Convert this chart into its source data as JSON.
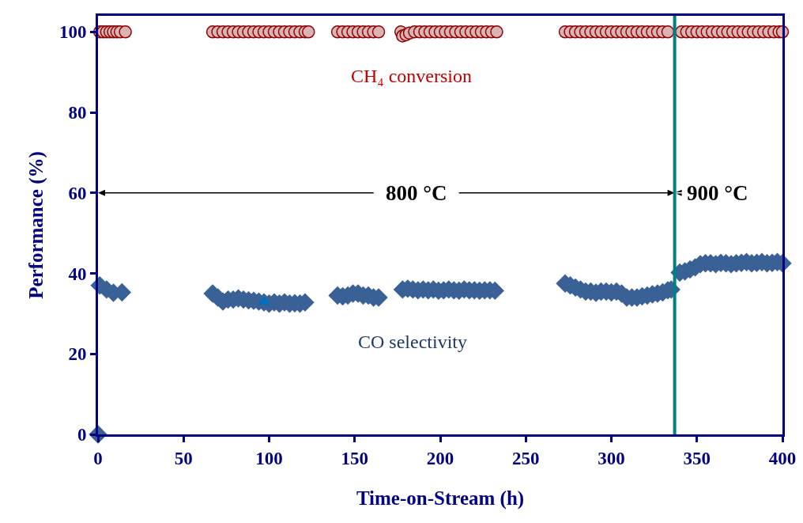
{
  "chart_data": {
    "type": "scatter",
    "xlabel": "Time-on-Stream (h)",
    "ylabel": "Performance (%)",
    "xlim": [
      0,
      400
    ],
    "xticks": [
      0,
      50,
      100,
      150,
      200,
      250,
      300,
      350,
      400
    ],
    "ylim": [
      0,
      104
    ],
    "yticks": [
      0,
      20,
      40,
      60,
      80,
      100
    ],
    "grid": false,
    "legend": false,
    "series": [
      {
        "name": "CH₄ conversion",
        "color": "#8b0000",
        "marker": "circle",
        "x": [
          1,
          3,
          5,
          7,
          9,
          11,
          13,
          16,
          67,
          70,
          73,
          76,
          79,
          82,
          85,
          88,
          91,
          94,
          97,
          100,
          103,
          106,
          109,
          112,
          115,
          118,
          121,
          123,
          140,
          143,
          146,
          149,
          152,
          155,
          158,
          161,
          164,
          177,
          178,
          180,
          182,
          185,
          188,
          191,
          194,
          197,
          200,
          203,
          206,
          209,
          212,
          215,
          218,
          221,
          224,
          227,
          230,
          233,
          273,
          276,
          279,
          282,
          285,
          288,
          291,
          294,
          297,
          300,
          303,
          306,
          309,
          312,
          315,
          318,
          321,
          324,
          327,
          330,
          333,
          341,
          344,
          347,
          350,
          353,
          356,
          359,
          362,
          365,
          368,
          371,
          374,
          377,
          380,
          383,
          386,
          389,
          392,
          395,
          398,
          400
        ],
        "values": [
          100,
          100,
          100,
          100,
          100,
          100,
          100,
          100,
          100,
          100,
          100,
          100,
          100,
          100,
          100,
          100,
          100,
          100,
          100,
          100,
          100,
          100,
          100,
          100,
          100,
          100,
          100,
          100,
          100,
          100,
          100,
          100,
          100,
          100,
          100,
          100,
          100,
          100,
          99,
          99.3,
          99.7,
          100,
          100,
          100,
          100,
          100,
          100,
          100,
          100,
          100,
          100,
          100,
          100,
          100,
          100,
          100,
          100,
          100,
          100,
          100,
          100,
          100,
          100,
          100,
          100,
          100,
          100,
          100,
          100,
          100,
          100,
          100,
          100,
          100,
          100,
          100,
          100,
          100,
          100,
          100,
          100,
          100,
          100,
          100,
          100,
          100,
          100,
          100,
          100,
          100,
          100,
          100,
          100,
          100,
          100,
          100,
          100,
          100,
          100,
          100
        ]
      },
      {
        "name": "CO selectivity",
        "color": "#3a6195",
        "marker": "diamond",
        "x": [
          0,
          1,
          5,
          9,
          14,
          67,
          70,
          73,
          76,
          79,
          82,
          85,
          88,
          91,
          94,
          97,
          100,
          103,
          106,
          109,
          112,
          115,
          118,
          121,
          140,
          143,
          146,
          149,
          152,
          155,
          158,
          161,
          164,
          178,
          181,
          184,
          187,
          190,
          193,
          196,
          199,
          202,
          205,
          208,
          211,
          214,
          217,
          220,
          223,
          226,
          229,
          232,
          273,
          276,
          279,
          282,
          285,
          288,
          291,
          294,
          297,
          300,
          303,
          306,
          309,
          312,
          315,
          318,
          321,
          324,
          327,
          330,
          333,
          335,
          340,
          343,
          346,
          349,
          352,
          355,
          358,
          361,
          364,
          367,
          370,
          373,
          376,
          379,
          382,
          385,
          388,
          391,
          394,
          397,
          400
        ],
        "values": [
          0,
          37,
          36,
          35.2,
          35.3,
          35,
          34,
          33,
          33.5,
          33.5,
          33.8,
          33.5,
          33.3,
          33.2,
          33,
          32.8,
          32.5,
          32.8,
          32.5,
          32.8,
          32.5,
          32.6,
          32.5,
          32.8,
          34.5,
          34.3,
          34.5,
          35,
          35,
          34.5,
          34.5,
          34,
          34,
          36,
          36.2,
          36,
          35.8,
          36,
          35.8,
          36,
          35.7,
          35.8,
          36,
          35.8,
          35.7,
          36,
          35.8,
          35.8,
          35.7,
          35.8,
          35.8,
          35.7,
          37.5,
          37,
          36.5,
          36,
          35.5,
          35.5,
          35.2,
          35.5,
          35.5,
          35.3,
          35.5,
          35,
          34,
          34,
          34,
          34.3,
          34.5,
          34.8,
          35,
          35.3,
          35.8,
          36,
          40.2,
          40.5,
          41,
          41.5,
          42.3,
          42.5,
          42.5,
          42.3,
          42.6,
          42.5,
          42.3,
          42.5,
          42.6,
          42.8,
          42.5,
          42.6,
          42.8,
          42.5,
          42.6,
          42.8,
          42.5
        ]
      },
      {
        "color": "#0070c0",
        "marker": "triangle",
        "x": [
          97
        ],
        "values": [
          33
        ]
      }
    ],
    "ref_lines": [
      {
        "axis": "x",
        "value": 337,
        "color": "#008080"
      }
    ],
    "annotations": [
      "800 °C",
      "900 °C"
    ]
  }
}
